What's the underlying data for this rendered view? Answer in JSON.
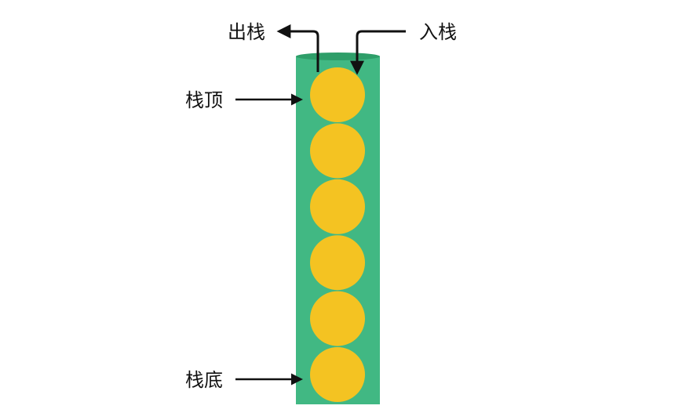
{
  "labels": {
    "pop": "出栈",
    "push": "入栈",
    "top": "栈顶",
    "bottom": "栈底"
  },
  "stack": {
    "element_count": 6
  },
  "colors": {
    "container": "#41b883",
    "container_rim": "#2e9e69",
    "element": "#f4c322",
    "arrow": "#111111",
    "text": "#111111"
  }
}
